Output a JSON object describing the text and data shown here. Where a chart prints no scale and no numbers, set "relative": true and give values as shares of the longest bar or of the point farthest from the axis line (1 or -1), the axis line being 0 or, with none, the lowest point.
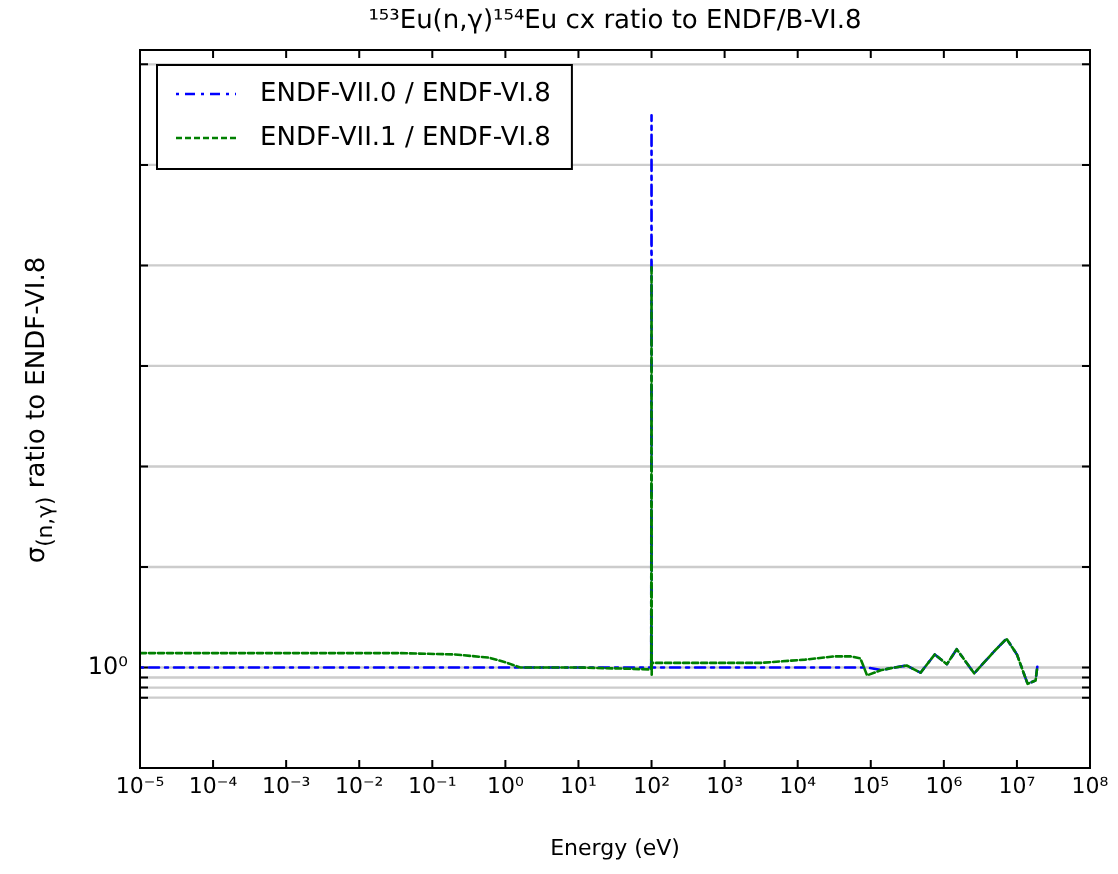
{
  "chart_data": {
    "type": "line",
    "title": "¹⁵³Eu(n,γ)¹⁵⁴Eu cx ratio to ENDF/B-VI.8",
    "xlabel": "Energy (eV)",
    "ylabel": "σ$_{(n,γ)}$ ratio to ENDF-VI.8",
    "relative": true,
    "log": "x",
    "grid": "y",
    "legend": "top left",
    "marker": "none",
    "annotations": [
      "10⁰"
    ],
    "xlim": [
      1e-05,
      100000000
    ],
    "xticks": [
      {
        "value": 1e-05,
        "label": "10⁻⁵"
      },
      {
        "value": 0.0001,
        "label": "10⁻⁴"
      },
      {
        "value": 0.001,
        "label": "10⁻³"
      },
      {
        "value": 0.01,
        "label": "10⁻²"
      },
      {
        "value": 0.1,
        "label": "10⁻¹"
      },
      {
        "value": 1,
        "label": "10⁰"
      },
      {
        "value": 10,
        "label": "10¹"
      },
      {
        "value": 100,
        "label": "10²"
      },
      {
        "value": 1000,
        "label": "10³"
      },
      {
        "value": 10000,
        "label": "10⁴"
      },
      {
        "value": 100000,
        "label": "10⁵"
      },
      {
        "value": 1000000,
        "label": "10⁶"
      },
      {
        "value": 10000000,
        "label": "10⁷"
      },
      {
        "value": 100000000,
        "label": "10⁸"
      }
    ],
    "series": [
      {
        "name": "ENDF-VII.0 / ENDF-VI.8",
        "color": "#0000ff",
        "line_style": "dotted",
        "x": [
          1e-05,
          99,
          100,
          100.5,
          101,
          89000,
          140000,
          190000,
          310000,
          480000,
          750000,
          1100000,
          1500000,
          2600000,
          5000000,
          7200000,
          10000000,
          14000000,
          18000000,
          19000000
        ],
        "values": [
          0.154,
          0.154,
          1,
          0.154,
          0.154,
          0.154,
          0.15,
          0.153,
          0.157,
          0.146,
          0.174,
          0.159,
          0.182,
          0.145,
          0.18,
          0.198,
          0.174,
          0.129,
          0.134,
          0.155
        ]
      },
      {
        "name": "ENDF-VII.1 / ENDF-VI.8",
        "color": "#008000",
        "line_style": "dashed",
        "x": [
          1e-05,
          0.036,
          0.2,
          0.6,
          1.0,
          1.6,
          10,
          50,
          99,
          100,
          100.5,
          101,
          182,
          3100,
          12600,
          32000,
          53000,
          72000,
          89000,
          140000,
          190000,
          310000,
          480000,
          750000,
          1100000,
          1500000,
          2600000,
          5000000,
          7200000,
          10000000,
          14000000,
          18000000,
          19000000
        ],
        "values": [
          0.176,
          0.176,
          0.174,
          0.169,
          0.162,
          0.154,
          0.154,
          0.152,
          0.151,
          0.769,
          0.143,
          0.161,
          0.161,
          0.161,
          0.166,
          0.171,
          0.171,
          0.168,
          0.142,
          0.15,
          0.153,
          0.157,
          0.146,
          0.174,
          0.159,
          0.182,
          0.145,
          0.18,
          0.198,
          0.174,
          0.129,
          0.134,
          0.155
        ]
      }
    ]
  }
}
